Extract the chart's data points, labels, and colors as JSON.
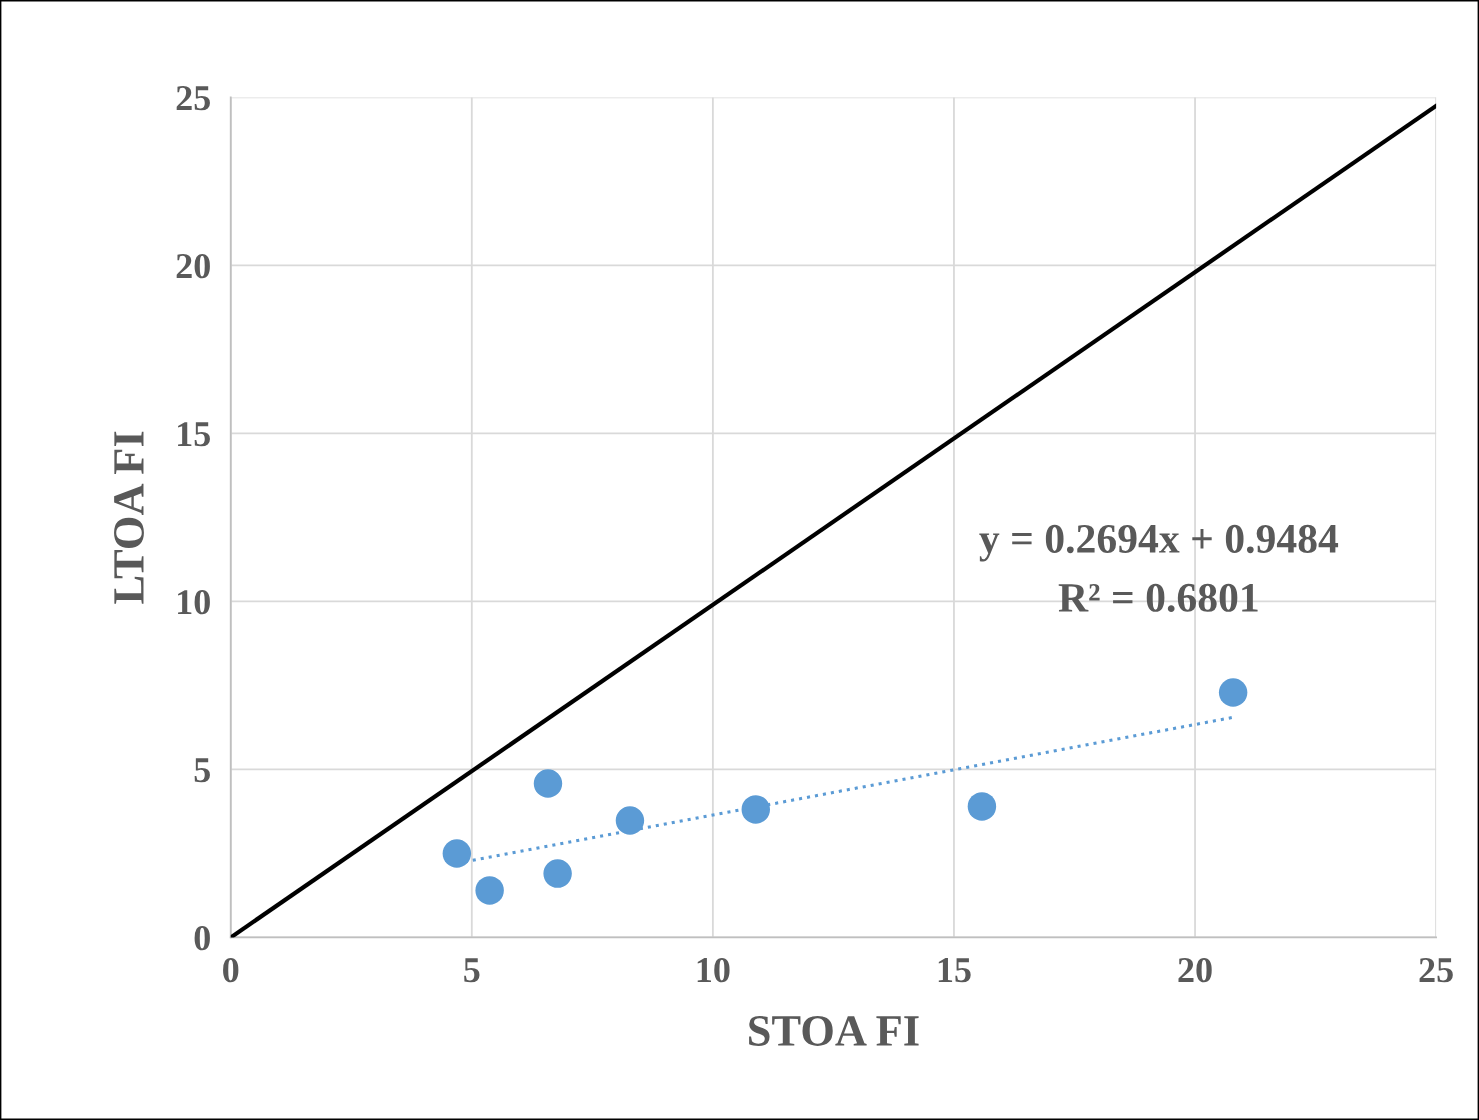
{
  "chart_data": {
    "type": "scatter",
    "xlabel": "STOA FI",
    "ylabel": "LTOA FI",
    "series": [
      {
        "type": "line",
        "color": "#000000",
        "x": [
          0,
          25
        ],
        "values": [
          0,
          24.75
        ],
        "marker": "none",
        "line_style": "solid"
      },
      {
        "color": "#5b9bd5",
        "x": [
          4.69,
          5.37,
          6.58,
          6.78,
          8.28,
          10.89,
          15.58,
          20.79
        ],
        "values": [
          2.5,
          1.4,
          4.58,
          1.9,
          3.48,
          3.81,
          3.9,
          7.29
        ],
        "marker": "circle"
      },
      {
        "type": "line",
        "color": "#5b9bd5",
        "x": [
          4.69,
          20.79
        ],
        "values": [
          2.21,
          6.55
        ],
        "marker": "none",
        "line_style": "dotted"
      }
    ],
    "annotations": [
      "y = 0.2694x + 0.9484",
      "R² = 0.6801"
    ],
    "xlim": [
      0,
      25
    ],
    "ylim": [
      0,
      25
    ],
    "xticks": [
      0,
      5,
      10,
      15,
      20,
      25
    ],
    "yticks": [
      0,
      5,
      10,
      15,
      20,
      25
    ],
    "grid": true,
    "legend": false
  }
}
